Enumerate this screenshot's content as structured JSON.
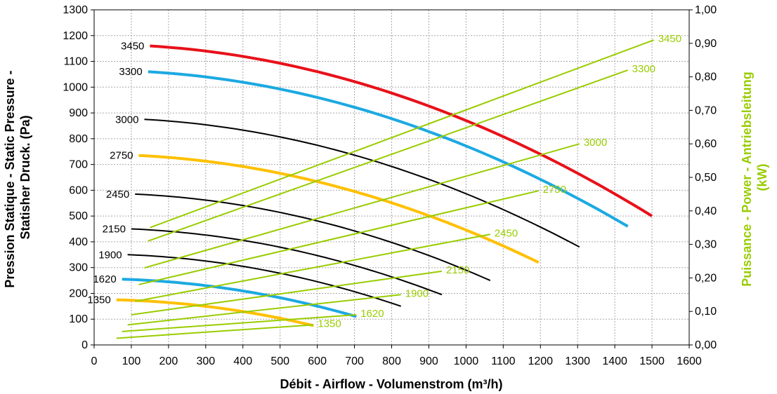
{
  "chart_data": {
    "type": "line",
    "x_label": "Débit - Airflow - Volumenstrom (m³/h)",
    "y_label_lines": [
      "Pression Statique - Static Pressure -",
      "Statisher Druck. (Pa)"
    ],
    "y2_label_lines": [
      "Puissance - Power - Antriebsleitung",
      "(kW)"
    ],
    "x_ticks": [
      "0",
      "100",
      "200",
      "300",
      "400",
      "500",
      "600",
      "700",
      "800",
      "900",
      "1000",
      "1100",
      "1200",
      "1300",
      "1400",
      "1500",
      "1600"
    ],
    "y_ticks": [
      "0",
      "100",
      "200",
      "300",
      "400",
      "500",
      "600",
      "700",
      "800",
      "900",
      "1000",
      "1100",
      "1200",
      "1300"
    ],
    "y2_ticks": [
      "0,00",
      "0,10",
      "0,20",
      "0,30",
      "0,40",
      "0,50",
      "0,60",
      "0,70",
      "0,80",
      "0,90",
      "1,00"
    ],
    "xlim": [
      0,
      1600
    ],
    "ylim": [
      0,
      1300
    ],
    "y2lim": [
      0,
      1.0
    ],
    "grid": true,
    "colors": {
      "red": "#e8111a",
      "blue": "#1ca9e2",
      "yellow": "#ffc000",
      "black": "#000000",
      "green": "#99cc00"
    },
    "pressure_series": [
      {
        "name": "3450",
        "color": "red",
        "width": 4,
        "x": [
          150,
          1500
        ],
        "y": [
          1160,
          500
        ],
        "label_anchor": "start",
        "label_x": 150
      },
      {
        "name": "3300",
        "color": "blue",
        "width": 4,
        "x": [
          145,
          1435
        ],
        "y": [
          1060,
          460
        ],
        "label_x": 145
      },
      {
        "name": "3000",
        "color": "black",
        "width": 2,
        "x": [
          135,
          1305
        ],
        "y": [
          875,
          380
        ],
        "label_x": 135
      },
      {
        "name": "2750",
        "color": "yellow",
        "width": 4,
        "x": [
          120,
          1195
        ],
        "y": [
          735,
          320
        ],
        "label_x": 120
      },
      {
        "name": "2450",
        "color": "black",
        "width": 2,
        "x": [
          110,
          1065
        ],
        "y": [
          585,
          250
        ],
        "label_x": 110
      },
      {
        "name": "2150",
        "color": "black",
        "width": 2,
        "x": [
          100,
          935
        ],
        "y": [
          450,
          195
        ],
        "label_x": 100
      },
      {
        "name": "1900",
        "color": "black",
        "width": 2,
        "x": [
          90,
          825
        ],
        "y": [
          350,
          150
        ],
        "label_x": 90
      },
      {
        "name": "1620",
        "color": "blue",
        "width": 4,
        "x": [
          75,
          705
        ],
        "y": [
          255,
          110
        ],
        "label_x": 75
      },
      {
        "name": "1350",
        "color": "yellow",
        "width": 4,
        "x": [
          60,
          590
        ],
        "y": [
          175,
          75
        ],
        "label_x": 60
      }
    ],
    "power_series": [
      {
        "name": "3450",
        "x": [
          150,
          1505
        ],
        "y": [
          0.35,
          0.91
        ]
      },
      {
        "name": "3300",
        "x": [
          145,
          1435
        ],
        "y": [
          0.31,
          0.82
        ]
      },
      {
        "name": "3000",
        "x": [
          135,
          1305
        ],
        "y": [
          0.23,
          0.6
        ]
      },
      {
        "name": "2750",
        "x": [
          120,
          1195
        ],
        "y": [
          0.18,
          0.46
        ]
      },
      {
        "name": "2450",
        "x": [
          110,
          1065
        ],
        "y": [
          0.13,
          0.33
        ]
      },
      {
        "name": "2150",
        "x": [
          100,
          935
        ],
        "y": [
          0.09,
          0.22
        ]
      },
      {
        "name": "1900",
        "x": [
          90,
          825
        ],
        "y": [
          0.06,
          0.15
        ]
      },
      {
        "name": "1620",
        "x": [
          75,
          705
        ],
        "y": [
          0.04,
          0.09
        ]
      },
      {
        "name": "1350",
        "x": [
          60,
          590
        ],
        "y": [
          0.02,
          0.06
        ]
      }
    ]
  }
}
